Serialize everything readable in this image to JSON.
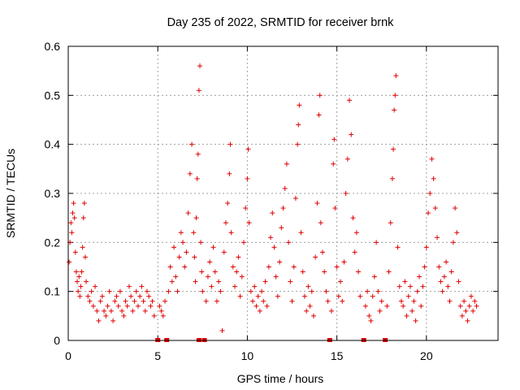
{
  "chart_data": {
    "type": "scatter",
    "title": "Day 235 of 2022, SRMTID for receiver brnk",
    "xlabel": "GPS time / hours",
    "ylabel": "SRMTID / TECUs",
    "xlim": [
      0,
      24
    ],
    "ylim": [
      0,
      0.6
    ],
    "xticks": [
      0,
      5,
      10,
      15,
      20
    ],
    "xtick_labels": [
      "0",
      "5",
      "10",
      "15",
      "20"
    ],
    "yticks": [
      0,
      0.1,
      0.2,
      0.3,
      0.4,
      0.5,
      0.6
    ],
    "ytick_labels": [
      "0",
      "0.1",
      "0.2",
      "0.3",
      "0.4",
      "0.5",
      "0.6"
    ],
    "grid": true,
    "marker": "+",
    "color": "#e00000",
    "gap_markers_x": [
      5.0,
      5.5,
      7.3,
      7.6,
      14.6,
      16.5,
      17.7
    ],
    "series": [
      {
        "name": "SRMTID",
        "points": [
          [
            0.05,
            0.16
          ],
          [
            0.1,
            0.2
          ],
          [
            0.15,
            0.24
          ],
          [
            0.2,
            0.22
          ],
          [
            0.25,
            0.26
          ],
          [
            0.3,
            0.28
          ],
          [
            0.35,
            0.25
          ],
          [
            0.4,
            0.18
          ],
          [
            0.45,
            0.14
          ],
          [
            0.5,
            0.12
          ],
          [
            0.55,
            0.1
          ],
          [
            0.6,
            0.13
          ],
          [
            0.65,
            0.09
          ],
          [
            0.7,
            0.11
          ],
          [
            0.75,
            0.14
          ],
          [
            0.8,
            0.19
          ],
          [
            0.85,
            0.25
          ],
          [
            0.9,
            0.28
          ],
          [
            0.95,
            0.17
          ],
          [
            1.0,
            0.12
          ],
          [
            1.1,
            0.09
          ],
          [
            1.2,
            0.08
          ],
          [
            1.3,
            0.1
          ],
          [
            1.4,
            0.07
          ],
          [
            1.5,
            0.11
          ],
          [
            1.6,
            0.06
          ],
          [
            1.7,
            0.04
          ],
          [
            1.8,
            0.08
          ],
          [
            1.9,
            0.09
          ],
          [
            2.0,
            0.06
          ],
          [
            2.1,
            0.05
          ],
          [
            2.2,
            0.07
          ],
          [
            2.3,
            0.1
          ],
          [
            2.4,
            0.06
          ],
          [
            2.5,
            0.04
          ],
          [
            2.6,
            0.08
          ],
          [
            2.7,
            0.09
          ],
          [
            2.8,
            0.07
          ],
          [
            2.9,
            0.1
          ],
          [
            3.0,
            0.06
          ],
          [
            3.1,
            0.05
          ],
          [
            3.2,
            0.08
          ],
          [
            3.3,
            0.07
          ],
          [
            3.4,
            0.11
          ],
          [
            3.5,
            0.09
          ],
          [
            3.6,
            0.06
          ],
          [
            3.7,
            0.08
          ],
          [
            3.8,
            0.1
          ],
          [
            3.9,
            0.07
          ],
          [
            4.0,
            0.09
          ],
          [
            4.1,
            0.11
          ],
          [
            4.2,
            0.08
          ],
          [
            4.3,
            0.06
          ],
          [
            4.4,
            0.1
          ],
          [
            4.5,
            0.09
          ],
          [
            4.6,
            0.07
          ],
          [
            4.7,
            0.08
          ],
          [
            4.8,
            0.05
          ],
          [
            5.1,
            0.07
          ],
          [
            5.2,
            0.06
          ],
          [
            5.3,
            0.05
          ],
          [
            5.4,
            0.08
          ],
          [
            5.6,
            0.1
          ],
          [
            5.7,
            0.15
          ],
          [
            5.8,
            0.12
          ],
          [
            5.9,
            0.19
          ],
          [
            6.0,
            0.13
          ],
          [
            6.1,
            0.1
          ],
          [
            6.2,
            0.17
          ],
          [
            6.3,
            0.22
          ],
          [
            6.4,
            0.2
          ],
          [
            6.5,
            0.15
          ],
          [
            6.6,
            0.18
          ],
          [
            6.7,
            0.26
          ],
          [
            6.8,
            0.34
          ],
          [
            6.9,
            0.4
          ],
          [
            7.0,
            0.22
          ],
          [
            7.05,
            0.17
          ],
          [
            7.1,
            0.12
          ],
          [
            7.15,
            0.25
          ],
          [
            7.2,
            0.33
          ],
          [
            7.25,
            0.38
          ],
          [
            7.3,
            0.51
          ],
          [
            7.35,
            0.56
          ],
          [
            7.4,
            0.2
          ],
          [
            7.45,
            0.14
          ],
          [
            7.5,
            0.1
          ],
          [
            7.7,
            0.08
          ],
          [
            7.8,
            0.13
          ],
          [
            7.9,
            0.16
          ],
          [
            8.0,
            0.11
          ],
          [
            8.1,
            0.19
          ],
          [
            8.2,
            0.14
          ],
          [
            8.3,
            0.08
          ],
          [
            8.4,
            0.12
          ],
          [
            8.5,
            0.1
          ],
          [
            8.6,
            0.02
          ],
          [
            8.7,
            0.18
          ],
          [
            8.8,
            0.24
          ],
          [
            8.9,
            0.28
          ],
          [
            9.0,
            0.34
          ],
          [
            9.05,
            0.4
          ],
          [
            9.1,
            0.22
          ],
          [
            9.2,
            0.15
          ],
          [
            9.3,
            0.11
          ],
          [
            9.4,
            0.14
          ],
          [
            9.5,
            0.17
          ],
          [
            9.6,
            0.09
          ],
          [
            9.7,
            0.13
          ],
          [
            9.8,
            0.2
          ],
          [
            9.9,
            0.27
          ],
          [
            10.0,
            0.33
          ],
          [
            10.05,
            0.39
          ],
          [
            10.1,
            0.24
          ],
          [
            10.2,
            0.1
          ],
          [
            10.3,
            0.08
          ],
          [
            10.4,
            0.11
          ],
          [
            10.5,
            0.07
          ],
          [
            10.6,
            0.09
          ],
          [
            10.7,
            0.06
          ],
          [
            10.8,
            0.1
          ],
          [
            10.9,
            0.08
          ],
          [
            11.0,
            0.12
          ],
          [
            11.1,
            0.07
          ],
          [
            11.2,
            0.15
          ],
          [
            11.3,
            0.21
          ],
          [
            11.4,
            0.26
          ],
          [
            11.5,
            0.19
          ],
          [
            11.6,
            0.13
          ],
          [
            11.7,
            0.09
          ],
          [
            11.8,
            0.16
          ],
          [
            11.9,
            0.23
          ],
          [
            12.0,
            0.27
          ],
          [
            12.1,
            0.31
          ],
          [
            12.2,
            0.36
          ],
          [
            12.3,
            0.2
          ],
          [
            12.4,
            0.12
          ],
          [
            12.5,
            0.08
          ],
          [
            12.6,
            0.15
          ],
          [
            12.7,
            0.29
          ],
          [
            12.8,
            0.4
          ],
          [
            12.85,
            0.44
          ],
          [
            12.9,
            0.48
          ],
          [
            13.0,
            0.22
          ],
          [
            13.1,
            0.14
          ],
          [
            13.2,
            0.09
          ],
          [
            13.3,
            0.06
          ],
          [
            13.4,
            0.11
          ],
          [
            13.5,
            0.07
          ],
          [
            13.6,
            0.1
          ],
          [
            13.7,
            0.05
          ],
          [
            13.8,
            0.17
          ],
          [
            13.9,
            0.28
          ],
          [
            14.0,
            0.46
          ],
          [
            14.05,
            0.5
          ],
          [
            14.1,
            0.24
          ],
          [
            14.2,
            0.18
          ],
          [
            14.3,
            0.14
          ],
          [
            14.4,
            0.1
          ],
          [
            14.5,
            0.08
          ],
          [
            14.7,
            0.06
          ],
          [
            14.8,
            0.36
          ],
          [
            14.85,
            0.41
          ],
          [
            14.9,
            0.27
          ],
          [
            15.0,
            0.15
          ],
          [
            15.1,
            0.09
          ],
          [
            15.2,
            0.12
          ],
          [
            15.3,
            0.08
          ],
          [
            15.4,
            0.16
          ],
          [
            15.5,
            0.3
          ],
          [
            15.6,
            0.37
          ],
          [
            15.7,
            0.49
          ],
          [
            15.8,
            0.42
          ],
          [
            15.9,
            0.25
          ],
          [
            16.0,
            0.18
          ],
          [
            16.1,
            0.22
          ],
          [
            16.2,
            0.14
          ],
          [
            16.3,
            0.09
          ],
          [
            16.6,
            0.07
          ],
          [
            16.7,
            0.1
          ],
          [
            16.8,
            0.05
          ],
          [
            16.9,
            0.04
          ],
          [
            17.0,
            0.09
          ],
          [
            17.1,
            0.13
          ],
          [
            17.2,
            0.2
          ],
          [
            17.3,
            0.1
          ],
          [
            17.4,
            0.06
          ],
          [
            17.5,
            0.08
          ],
          [
            17.8,
            0.07
          ],
          [
            17.9,
            0.14
          ],
          [
            18.0,
            0.24
          ],
          [
            18.1,
            0.33
          ],
          [
            18.15,
            0.39
          ],
          [
            18.2,
            0.47
          ],
          [
            18.25,
            0.5
          ],
          [
            18.3,
            0.54
          ],
          [
            18.4,
            0.19
          ],
          [
            18.5,
            0.11
          ],
          [
            18.6,
            0.08
          ],
          [
            18.7,
            0.07
          ],
          [
            18.8,
            0.12
          ],
          [
            18.9,
            0.05
          ],
          [
            19.0,
            0.09
          ],
          [
            19.1,
            0.11
          ],
          [
            19.2,
            0.06
          ],
          [
            19.3,
            0.08
          ],
          [
            19.4,
            0.04
          ],
          [
            19.5,
            0.1
          ],
          [
            19.6,
            0.13
          ],
          [
            19.7,
            0.07
          ],
          [
            19.8,
            0.11
          ],
          [
            19.9,
            0.15
          ],
          [
            20.0,
            0.19
          ],
          [
            20.1,
            0.26
          ],
          [
            20.2,
            0.3
          ],
          [
            20.3,
            0.37
          ],
          [
            20.4,
            0.33
          ],
          [
            20.5,
            0.27
          ],
          [
            20.6,
            0.21
          ],
          [
            20.7,
            0.15
          ],
          [
            20.8,
            0.12
          ],
          [
            20.9,
            0.1
          ],
          [
            21.0,
            0.13
          ],
          [
            21.1,
            0.16
          ],
          [
            21.2,
            0.11
          ],
          [
            21.3,
            0.08
          ],
          [
            21.4,
            0.14
          ],
          [
            21.5,
            0.2
          ],
          [
            21.6,
            0.27
          ],
          [
            21.7,
            0.22
          ],
          [
            21.8,
            0.12
          ],
          [
            21.9,
            0.07
          ],
          [
            22.0,
            0.05
          ],
          [
            22.1,
            0.08
          ],
          [
            22.2,
            0.06
          ],
          [
            22.3,
            0.04
          ],
          [
            22.4,
            0.07
          ],
          [
            22.5,
            0.09
          ],
          [
            22.6,
            0.06
          ],
          [
            22.7,
            0.08
          ],
          [
            22.8,
            0.07
          ]
        ]
      }
    ]
  }
}
